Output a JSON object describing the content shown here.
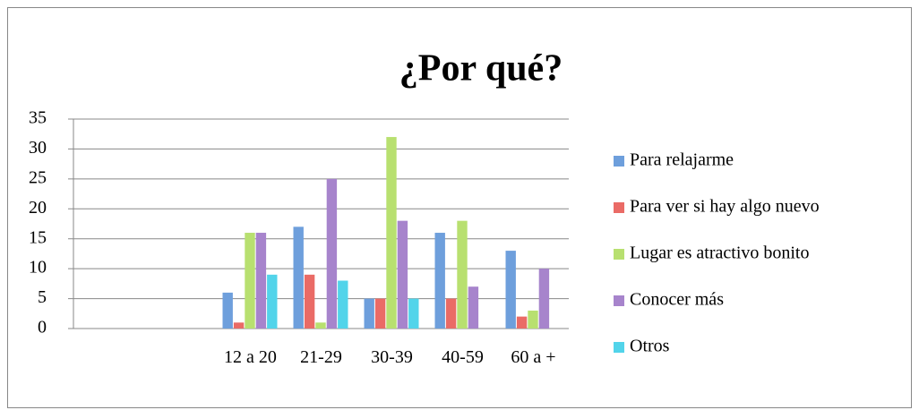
{
  "chart_data": {
    "type": "bar",
    "title": "¿Por qué?",
    "categories": [
      null,
      null,
      "12 a 20",
      "21-29",
      "30-39",
      "40-59",
      "60 a +"
    ],
    "series": [
      {
        "name": "Para relajarme",
        "color": "#6e9fdc",
        "values": [
          null,
          null,
          6,
          17,
          5,
          16,
          13
        ]
      },
      {
        "name": "Para ver si hay algo nuevo",
        "color": "#ea6b66",
        "values": [
          null,
          null,
          1,
          9,
          5,
          5,
          2
        ]
      },
      {
        "name": "Lugar es atractivo bonito",
        "color": "#b8e070",
        "values": [
          null,
          null,
          16,
          1,
          32,
          18,
          3
        ]
      },
      {
        "name": "Conocer más",
        "color": "#a784cc",
        "values": [
          null,
          null,
          16,
          25,
          18,
          7,
          10
        ]
      },
      {
        "name": "Otros",
        "color": "#52d4ea",
        "values": [
          null,
          null,
          9,
          8,
          5,
          null,
          null
        ]
      }
    ],
    "ylim": [
      0,
      35
    ],
    "yticks": [
      0,
      5,
      10,
      15,
      20,
      25,
      30,
      35
    ],
    "grid": true,
    "legend": "right"
  }
}
